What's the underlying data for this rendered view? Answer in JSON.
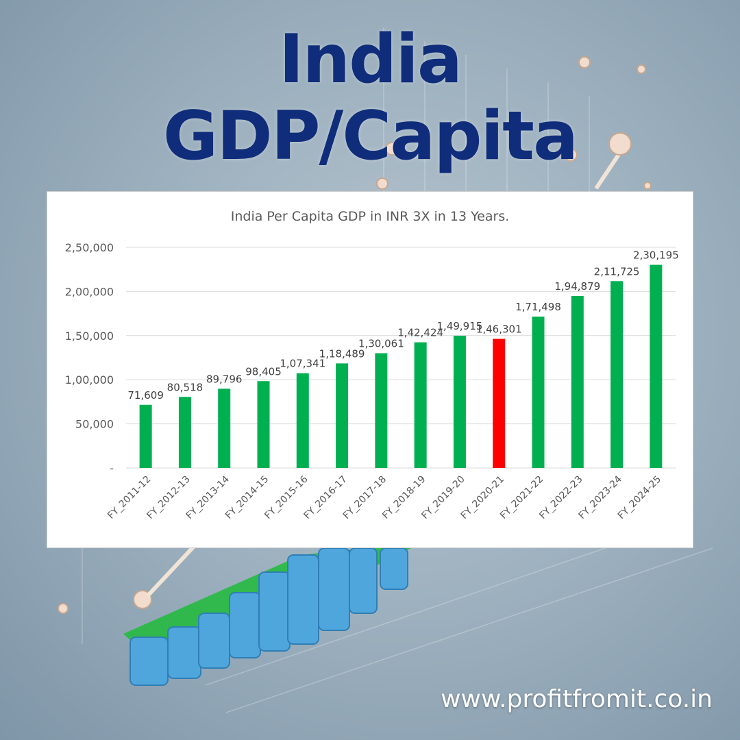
{
  "heading": {
    "line1": "India",
    "line2": "GDP/Capita"
  },
  "website": "www.profitfromit.co.in",
  "colors": {
    "title": "#0f2d7a",
    "bar_positive": "#00b050",
    "bar_negative": "#ff0000"
  },
  "chart_data": {
    "type": "bar",
    "title": "India Per Capita GDP in INR 3X in 13 Years.",
    "xlabel": "",
    "ylabel": "",
    "categories": [
      "FY_2011-12",
      "FY_2012-13",
      "FY_2013-14",
      "FY_2014-15",
      "FY_2015-16",
      "FY_2016-17",
      "FY_2017-18",
      "FY_2018-19",
      "FY_2019-20",
      "FY_2020-21",
      "FY_2021-22",
      "FY_2022-23",
      "FY_2023-24",
      "FY_2024-25"
    ],
    "values": [
      71609,
      80518,
      89796,
      98405,
      107341,
      118489,
      130061,
      142424,
      149915,
      146301,
      171498,
      194879,
      211725,
      230195
    ],
    "data_labels": [
      "71,609",
      "80,518",
      "89,796",
      "98,405",
      "1,07,341",
      "1,18,489",
      "1,30,061",
      "1,42,424",
      "1,49,915",
      "1,46,301",
      "1,71,498",
      "1,94,879",
      "2,11,725",
      "2,30,195"
    ],
    "bar_colors": [
      "#00b050",
      "#00b050",
      "#00b050",
      "#00b050",
      "#00b050",
      "#00b050",
      "#00b050",
      "#00b050",
      "#00b050",
      "#ff0000",
      "#00b050",
      "#00b050",
      "#00b050",
      "#00b050"
    ],
    "ylim": [
      0,
      250000
    ],
    "yticks": [
      0,
      50000,
      100000,
      150000,
      200000,
      250000
    ],
    "ytick_labels": [
      "-",
      "50,000",
      "1,00,000",
      "1,50,000",
      "2,00,000",
      "2,50,000"
    ],
    "grid": true,
    "legend": "none"
  }
}
